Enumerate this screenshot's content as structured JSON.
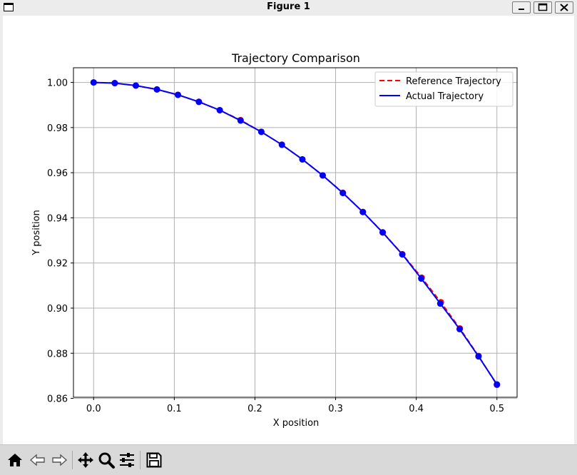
{
  "window": {
    "title": "Figure 1"
  },
  "chart_data": {
    "type": "line",
    "title": "Trajectory Comparison",
    "xlabel": "X position",
    "ylabel": "Y position",
    "xlim": [
      -0.025,
      0.525
    ],
    "ylim": [
      0.8605,
      1.0065
    ],
    "xticks": [
      "0.0",
      "0.1",
      "0.2",
      "0.3",
      "0.4",
      "0.5"
    ],
    "xtick_values": [
      0.0,
      0.1,
      0.2,
      0.3,
      0.4,
      0.5
    ],
    "yticks": [
      "0.86",
      "0.88",
      "0.90",
      "0.92",
      "0.94",
      "0.96",
      "0.98",
      "1.00"
    ],
    "ytick_values": [
      0.86,
      0.88,
      0.9,
      0.92,
      0.94,
      0.96,
      0.98,
      1.0
    ],
    "grid": true,
    "legend_position": "top-right",
    "series": [
      {
        "name": "Reference Trajectory",
        "color": "#ff0000",
        "style": "dashed",
        "marker": "circle",
        "x": [
          0.0,
          0.0262,
          0.0523,
          0.0785,
          0.1045,
          0.1305,
          0.1564,
          0.1822,
          0.2079,
          0.2334,
          0.2588,
          0.284,
          0.309,
          0.3338,
          0.3584,
          0.3827,
          0.4067,
          0.4305,
          0.454,
          0.4772,
          0.5
        ],
        "y": [
          1.0,
          0.9997,
          0.9986,
          0.9969,
          0.9945,
          0.9914,
          0.9877,
          0.9833,
          0.9781,
          0.9724,
          0.9659,
          0.9588,
          0.9511,
          0.9426,
          0.9336,
          0.9239,
          0.9135,
          0.9026,
          0.891,
          0.8788,
          0.866
        ]
      },
      {
        "name": "Actual Trajectory",
        "color": "#0000ff",
        "style": "solid",
        "marker": "circle",
        "x": [
          0.0,
          0.0262,
          0.0523,
          0.0785,
          0.1045,
          0.1305,
          0.1564,
          0.1822,
          0.2079,
          0.2334,
          0.2588,
          0.284,
          0.309,
          0.3338,
          0.3584,
          0.3827,
          0.4062,
          0.4298,
          0.4538,
          0.4772,
          0.5
        ],
        "y": [
          1.0,
          0.9997,
          0.9986,
          0.9969,
          0.9945,
          0.9914,
          0.9877,
          0.9831,
          0.9781,
          0.9724,
          0.9659,
          0.9588,
          0.951,
          0.9426,
          0.9335,
          0.9238,
          0.9131,
          0.902,
          0.8907,
          0.8786,
          0.8662
        ]
      }
    ]
  },
  "toolbar": {
    "buttons": [
      "home-icon",
      "back-icon",
      "forward-icon",
      "pan-icon",
      "zoom-icon",
      "configure-subplots-icon",
      "save-icon"
    ]
  }
}
